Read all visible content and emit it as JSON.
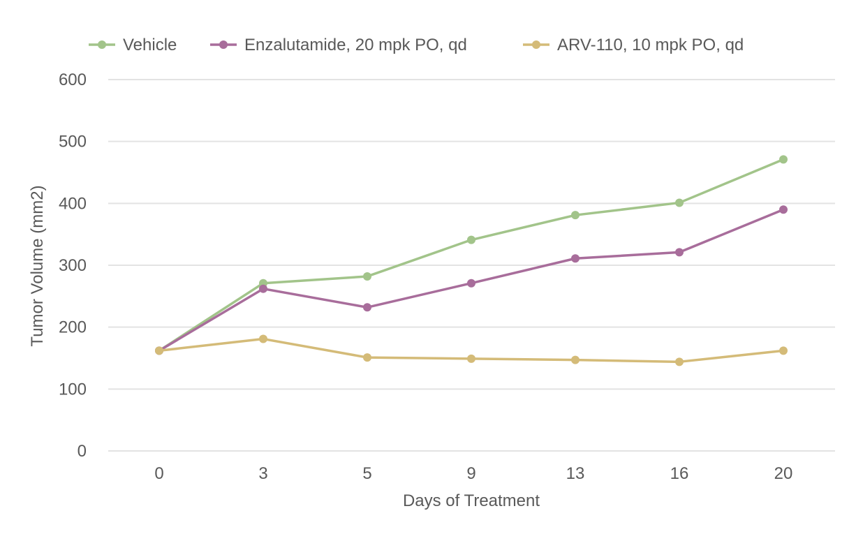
{
  "chart_data": {
    "type": "line",
    "title": "",
    "xlabel": "Days of Treatment",
    "ylabel": "Tumor Volume (mm2)",
    "categories": [
      "0",
      "3",
      "5",
      "9",
      "13",
      "16",
      "20"
    ],
    "ylim": [
      0,
      600
    ],
    "yticks": [
      "0",
      "100",
      "200",
      "300",
      "400",
      "500",
      "600"
    ],
    "grid": true,
    "legend_position": "top",
    "series": [
      {
        "name": "Vehicle",
        "color": "#a2c48a",
        "values": [
          162,
          271,
          282,
          341,
          381,
          401,
          471
        ]
      },
      {
        "name": "Enzalutamide, 20 mpk PO, qd",
        "color": "#a86d9b",
        "values": [
          162,
          262,
          232,
          271,
          311,
          321,
          390
        ]
      },
      {
        "name": "ARV-110, 10 mpk PO, qd",
        "color": "#d4bb78",
        "values": [
          162,
          181,
          151,
          149,
          147,
          144,
          162
        ]
      }
    ]
  }
}
